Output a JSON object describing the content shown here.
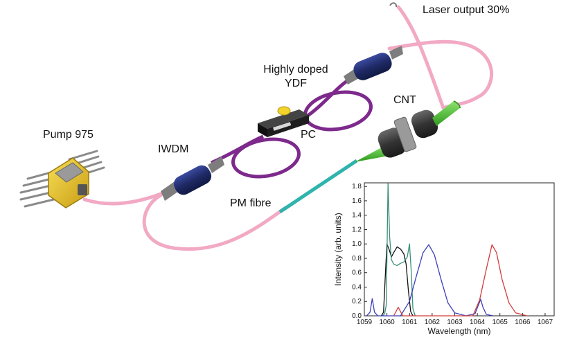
{
  "labels": {
    "laser_output": "Laser output 30%",
    "highly_doped": "Highly doped",
    "ydf": "YDF",
    "cnt": "CNT",
    "pump": "Pump 975",
    "iwdm": "IWDM",
    "pc": "PC",
    "pm_fibre": "PM fibre"
  },
  "colors": {
    "fibre": "#f2a9c4",
    "pm_fibre": "#2fb3ad",
    "ydf_fibre": "#7d2a8c",
    "iwdm": "#23306e",
    "connector": "#7d7d7d",
    "cnt_cone": "#4cc832",
    "pump_body": "#e7c52a",
    "pc_box": "#1e1e1e",
    "pc_knob": "#f3d22c",
    "series_black": "#111111",
    "series_green": "#3a8f78",
    "series_blue": "#3a3fb8",
    "series_red": "#d33a3a"
  },
  "chart_data": {
    "type": "line",
    "title": "",
    "xlabel": "Wavelength (nm)",
    "ylabel": "Intensity (arb. units)",
    "xlim": [
      1059,
      1067.4
    ],
    "ylim": [
      0,
      1.85
    ],
    "xticks": [
      1059,
      1060,
      1061,
      1062,
      1063,
      1064,
      1065,
      1066,
      1067
    ],
    "yticks": [
      0.0,
      0.2,
      0.4,
      0.6,
      0.8,
      1.0,
      1.2,
      1.4,
      1.6,
      1.8
    ],
    "grid": false,
    "series": [
      {
        "color": "#111111",
        "x": [
          1059.75,
          1059.85,
          1059.95,
          1060.0,
          1060.1,
          1060.2,
          1060.3,
          1060.45,
          1060.6,
          1060.75,
          1060.85,
          1060.95,
          1061.05,
          1061.15
        ],
        "y": [
          0.0,
          0.05,
          0.7,
          1.0,
          0.92,
          0.82,
          0.88,
          0.96,
          0.93,
          0.86,
          0.72,
          0.35,
          0.06,
          0.0
        ]
      },
      {
        "color": "#3a8f78",
        "x": [
          1059.8,
          1059.9,
          1059.97,
          1060.05,
          1060.12,
          1060.2,
          1060.3,
          1060.45,
          1060.6,
          1060.75,
          1060.9,
          1061.0,
          1061.08,
          1061.15,
          1061.25
        ],
        "y": [
          0.0,
          0.03,
          0.15,
          1.84,
          1.1,
          0.78,
          0.72,
          0.7,
          0.73,
          0.75,
          0.82,
          1.0,
          0.6,
          0.1,
          0.0
        ]
      },
      {
        "color": "#3a3fb8",
        "x": [
          1059.1,
          1059.25,
          1059.35,
          1059.45,
          1059.6,
          1060.6,
          1061.0,
          1061.3,
          1061.6,
          1061.85,
          1062.1,
          1062.4,
          1062.7,
          1063.0,
          1063.5,
          1063.9,
          1064.05,
          1064.15,
          1064.25,
          1064.4,
          1064.7
        ],
        "y": [
          0.0,
          0.05,
          0.24,
          0.05,
          0.0,
          0.0,
          0.2,
          0.55,
          0.88,
          0.99,
          0.85,
          0.5,
          0.18,
          0.04,
          0.0,
          0.03,
          0.15,
          0.23,
          0.12,
          0.02,
          0.0
        ]
      },
      {
        "color": "#d33a3a",
        "x": [
          1060.3,
          1060.4,
          1060.5,
          1060.6,
          1060.7,
          1063.8,
          1064.1,
          1064.4,
          1064.65,
          1064.85,
          1065.1,
          1065.4,
          1065.7,
          1066.2
        ],
        "y": [
          0.0,
          0.06,
          0.12,
          0.06,
          0.0,
          0.0,
          0.22,
          0.65,
          0.99,
          0.88,
          0.5,
          0.18,
          0.04,
          0.0
        ]
      }
    ]
  }
}
